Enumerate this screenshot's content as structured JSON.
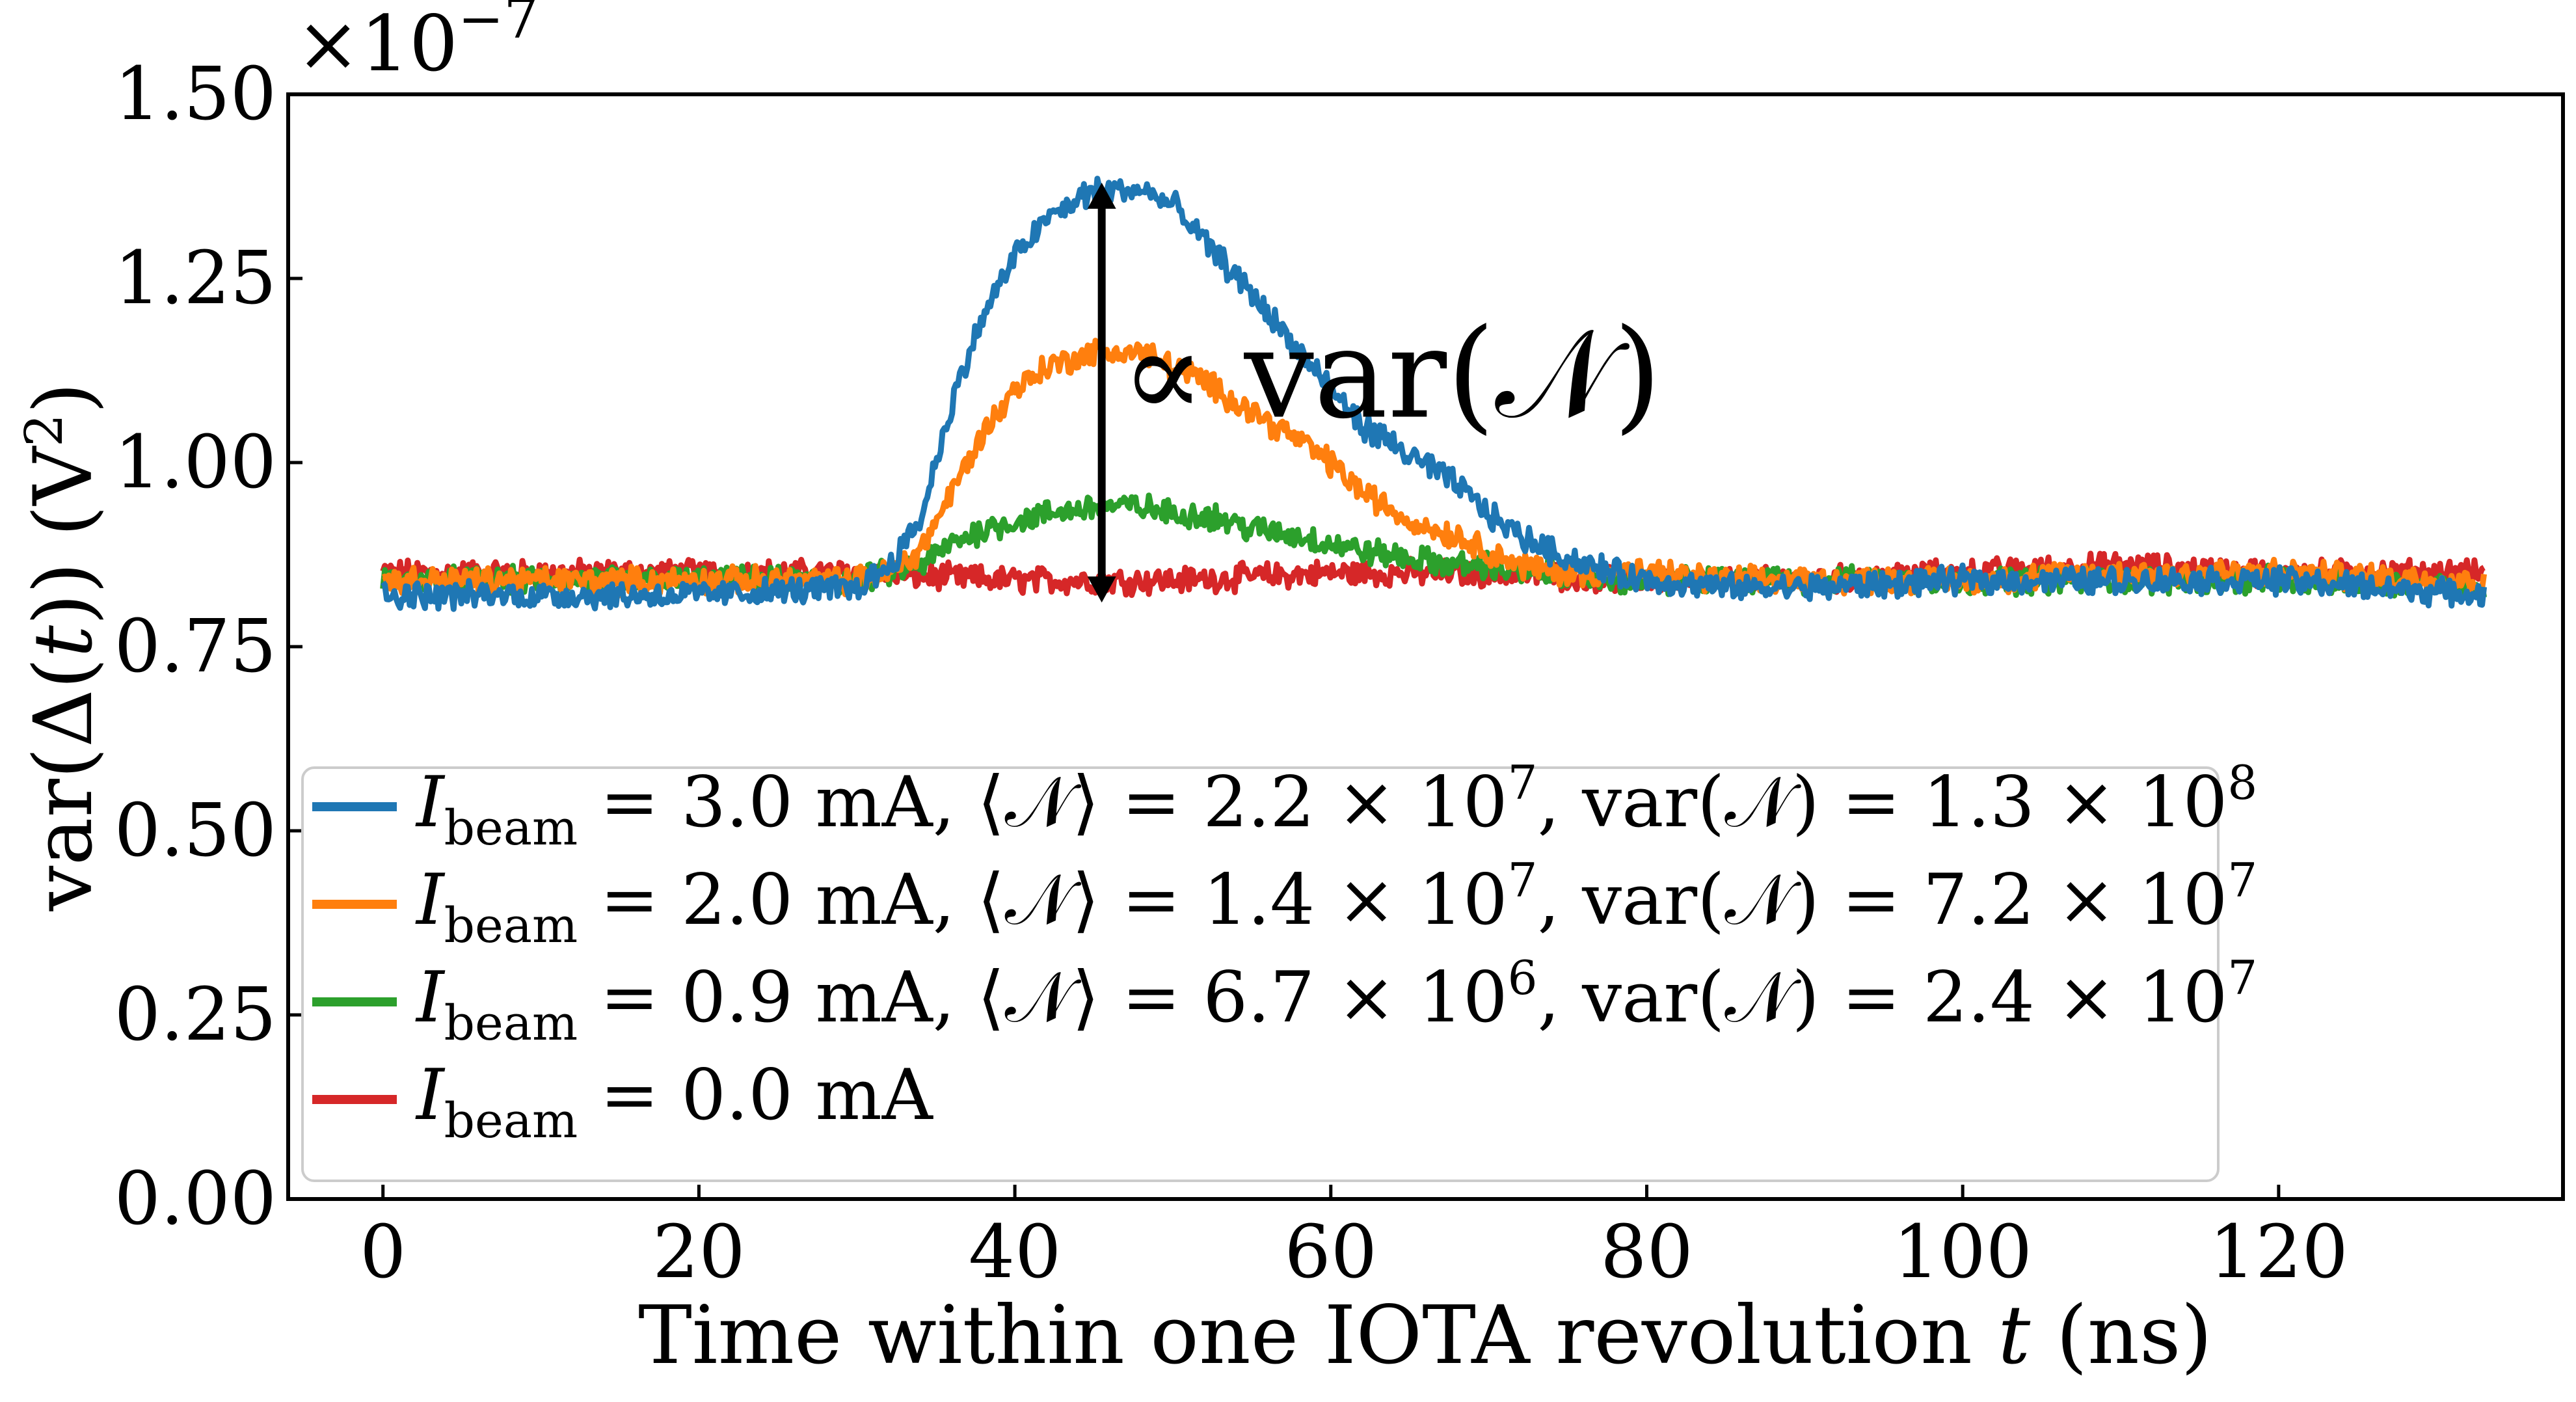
{
  "chart_data": {
    "type": "line",
    "title": "",
    "xlabel": "Time within one IOTA revolution t (ns)",
    "ylabel": "var(Δ(t)) (V²)",
    "xlim": [
      -6,
      138
    ],
    "ylim": [
      0.0,
      1.5
    ],
    "y_scale_label": "×10⁻⁷",
    "x_ticks": [
      0,
      20,
      40,
      60,
      80,
      100,
      120
    ],
    "x_tick_labels": [
      "0",
      "20",
      "40",
      "60",
      "80",
      "100",
      "120"
    ],
    "y_ticks": [
      0.0,
      0.25,
      0.5,
      0.75,
      1.0,
      1.25,
      1.5
    ],
    "y_tick_labels": [
      "0.00",
      "0.25",
      "0.50",
      "0.75",
      "1.00",
      "1.25",
      "1.50"
    ],
    "grid": false,
    "legend_position": "lower-left",
    "annotation": {
      "text": "∝ var(𝒩)",
      "arrow_x": 45.5,
      "arrow_y_from": 0.81,
      "arrow_y_to": 1.38
    },
    "series": [
      {
        "name": "I_beam = 3.0 mA, ⟨𝒩⟩ = 2.2 × 10⁷, var(𝒩) = 1.3 × 10⁸",
        "color": "#1f77b4",
        "baseline": 0.82,
        "x": [
          0,
          10,
          20,
          30,
          32,
          34,
          36,
          38,
          40,
          42,
          45,
          48,
          50,
          52,
          55,
          58,
          60,
          62,
          65,
          68,
          70,
          72,
          75,
          78,
          80,
          85,
          90,
          100,
          110,
          120,
          133
        ],
        "values": [
          0.82,
          0.82,
          0.82,
          0.83,
          0.86,
          0.92,
          1.08,
          1.2,
          1.28,
          1.33,
          1.37,
          1.37,
          1.35,
          1.3,
          1.23,
          1.15,
          1.1,
          1.05,
          1.01,
          0.97,
          0.93,
          0.9,
          0.87,
          0.85,
          0.84,
          0.83,
          0.83,
          0.84,
          0.84,
          0.84,
          0.82
        ]
      },
      {
        "name": "I_beam = 2.0 mA, ⟨𝒩⟩ = 1.4 × 10⁷, var(𝒩) = 7.2 × 10⁷",
        "color": "#ff7f0e",
        "baseline": 0.84,
        "x": [
          0,
          10,
          20,
          30,
          32,
          34,
          36,
          38,
          40,
          42,
          45,
          48,
          50,
          52,
          55,
          58,
          60,
          62,
          65,
          68,
          70,
          72,
          75,
          78,
          80,
          85,
          90,
          100,
          110,
          120,
          133
        ],
        "values": [
          0.84,
          0.84,
          0.84,
          0.84,
          0.85,
          0.88,
          0.96,
          1.04,
          1.1,
          1.13,
          1.15,
          1.15,
          1.13,
          1.11,
          1.07,
          1.03,
          1.0,
          0.96,
          0.92,
          0.9,
          0.88,
          0.86,
          0.85,
          0.85,
          0.85,
          0.84,
          0.84,
          0.84,
          0.85,
          0.85,
          0.84
        ]
      },
      {
        "name": "I_beam = 0.9 mA, ⟨𝒩⟩ = 6.7 × 10⁶, var(𝒩) = 2.4 × 10⁷",
        "color": "#2ca02c",
        "baseline": 0.84,
        "x": [
          0,
          10,
          20,
          30,
          32,
          34,
          36,
          38,
          40,
          42,
          45,
          48,
          50,
          52,
          55,
          58,
          60,
          62,
          65,
          68,
          70,
          72,
          75,
          78,
          80,
          85,
          90,
          100,
          110,
          120,
          133
        ],
        "values": [
          0.84,
          0.84,
          0.84,
          0.84,
          0.85,
          0.86,
          0.89,
          0.91,
          0.92,
          0.93,
          0.94,
          0.94,
          0.93,
          0.93,
          0.91,
          0.9,
          0.89,
          0.88,
          0.87,
          0.86,
          0.86,
          0.85,
          0.85,
          0.84,
          0.84,
          0.84,
          0.84,
          0.84,
          0.84,
          0.84,
          0.83
        ]
      },
      {
        "name": "I_beam = 0.0 mA",
        "color": "#d62728",
        "baseline": 0.85,
        "x": [
          0,
          10,
          20,
          30,
          40,
          50,
          60,
          70,
          80,
          90,
          100,
          110,
          120,
          133
        ],
        "values": [
          0.85,
          0.85,
          0.85,
          0.85,
          0.84,
          0.84,
          0.85,
          0.85,
          0.84,
          0.84,
          0.85,
          0.86,
          0.85,
          0.85
        ]
      }
    ]
  },
  "legend": {
    "entries": [
      {
        "sym": "I",
        "sub": "beam",
        "rest1": " = 3.0 mA, ⟨𝒩⟩ = 2.2 × 10",
        "exp1": "7",
        "rest2": ", var(𝒩) = 1.3 × 10",
        "exp2": "8"
      },
      {
        "sym": "I",
        "sub": "beam",
        "rest1": " = 2.0 mA, ⟨𝒩⟩ = 1.4 × 10",
        "exp1": "7",
        "rest2": ", var(𝒩) = 7.2 × 10",
        "exp2": "7"
      },
      {
        "sym": "I",
        "sub": "beam",
        "rest1": " = 0.9 mA, ⟨𝒩⟩ = 6.7 × 10",
        "exp1": "6",
        "rest2": ", var(𝒩) = 2.4 × 10",
        "exp2": "7"
      },
      {
        "sym": "I",
        "sub": "beam",
        "rest1": " = 0.0 mA",
        "exp1": "",
        "rest2": "",
        "exp2": ""
      }
    ]
  },
  "axis_text": {
    "xlabel_main": "Time within one IOTA revolution ",
    "xlabel_var": "t",
    "xlabel_unit": " (ns)",
    "ylabel_main": "var(Δ(",
    "ylabel_var": "t",
    "ylabel_end": ")) (V",
    "ylabel_exp": "2",
    "ylabel_close": ")",
    "scale_prefix": "×10",
    "scale_exp": "−7"
  }
}
